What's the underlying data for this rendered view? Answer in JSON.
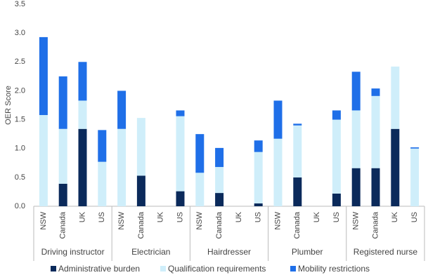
{
  "chart_data": {
    "type": "stacked-bar",
    "y_label": "OER Score",
    "groups": [
      "Driving instructor",
      "Electrician",
      "Hairdresser",
      "Plumber",
      "Registered nurse"
    ],
    "categories": [
      "NSW",
      "Canada",
      "UK",
      "US",
      "NSW",
      "Canada",
      "UK",
      "US",
      "NSW",
      "Canada",
      "UK",
      "US",
      "NSW",
      "Canada",
      "UK",
      "US",
      "NSW",
      "Canada",
      "UK",
      "US"
    ],
    "series": [
      {
        "name": "Administrative burden",
        "color": "#0b2a5b",
        "values": [
          0,
          0.39,
          1.34,
          0,
          0,
          0.53,
          0,
          0.26,
          0,
          0.23,
          0,
          0.05,
          0,
          0.5,
          0,
          0.22,
          0.66,
          0.66,
          1.34,
          0
        ]
      },
      {
        "name": "Qualification requirements",
        "color": "#cfeefa",
        "values": [
          1.58,
          0.95,
          0.49,
          0.77,
          1.34,
          1.0,
          0,
          1.3,
          0.58,
          0.45,
          0,
          0.89,
          1.17,
          0.9,
          0,
          1.28,
          1.0,
          1.25,
          1.08,
          1.0
        ]
      },
      {
        "name": "Mobility restrictions",
        "color": "#1f6fe8",
        "values": [
          1.35,
          0.91,
          0.67,
          0.55,
          0.66,
          0,
          0,
          0.1,
          0.67,
          0.33,
          0,
          0.2,
          0.66,
          0.03,
          0,
          0.16,
          0.67,
          0.13,
          0,
          0.02
        ]
      }
    ],
    "ylim": [
      0,
      3.5
    ],
    "yticks": [
      {
        "value": 0,
        "label": "0.0"
      },
      0.5,
      {
        "value": 1,
        "label": "1.0"
      },
      1.5,
      {
        "value": 2,
        "label": "2.0"
      },
      2.5,
      {
        "value": 3,
        "label": "3.0"
      },
      3.5
    ],
    "legend": "bottom"
  }
}
